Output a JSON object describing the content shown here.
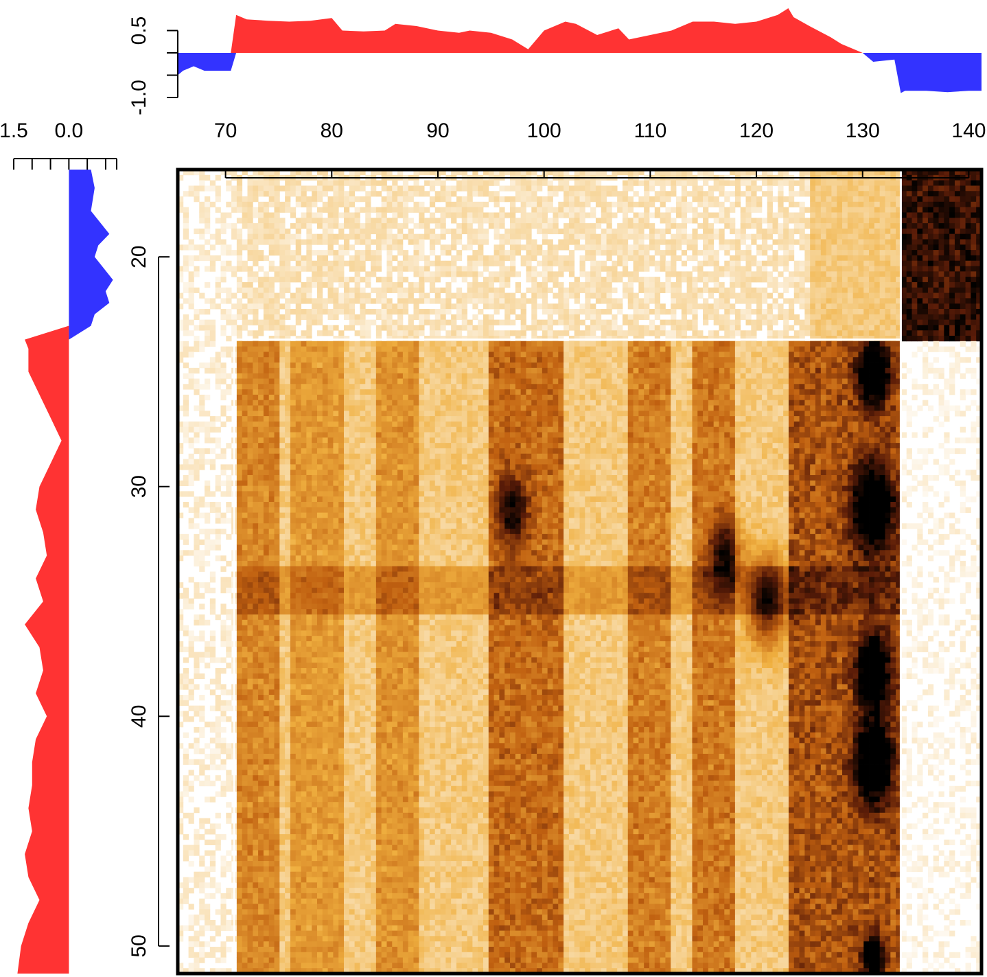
{
  "chart_data": {
    "type": "heatmap",
    "title": "",
    "xlabel": "",
    "ylabel": "",
    "heatmap": {
      "xlim": [
        65.5,
        141.2
      ],
      "ylim": [
        16.2,
        51.2
      ],
      "x_ticks": [
        70,
        80,
        90,
        100,
        110,
        120,
        130,
        140
      ],
      "y_ticks": [
        20,
        30,
        40,
        50
      ],
      "colormap": [
        "#ffffff",
        "#f0b040",
        "#c06010",
        "#5a1c08",
        "#000000"
      ],
      "x_boundaries": [
        70.8,
        133.6
      ],
      "y_boundary": 23.6,
      "vertical_bands": [
        {
          "x0": 71,
          "x1": 75,
          "level": 0.25
        },
        {
          "x0": 76,
          "x1": 81,
          "level": 0.18
        },
        {
          "x0": 84,
          "x1": 88,
          "level": 0.2
        },
        {
          "x0": 95,
          "x1": 102,
          "level": 0.35
        },
        {
          "x0": 108,
          "x1": 112,
          "level": 0.28
        },
        {
          "x0": 114,
          "x1": 118,
          "level": 0.3
        },
        {
          "x0": 123,
          "x1": 133.5,
          "level": 0.45
        }
      ],
      "hotspots": [
        {
          "x": 131,
          "y": 38,
          "r": 1.5,
          "level": 0.9
        },
        {
          "x": 131,
          "y": 42,
          "r": 1.8,
          "level": 0.85
        },
        {
          "x": 131,
          "y": 31,
          "r": 2.0,
          "level": 0.75
        },
        {
          "x": 131,
          "y": 25,
          "r": 1.5,
          "level": 0.8
        },
        {
          "x": 121,
          "y": 35,
          "r": 1.8,
          "level": 0.65
        },
        {
          "x": 131,
          "y": 50.5,
          "r": 1.0,
          "level": 0.8
        },
        {
          "x": 117,
          "y": 33,
          "r": 1.5,
          "level": 0.55
        },
        {
          "x": 97,
          "y": 31,
          "r": 1.5,
          "level": 0.5
        }
      ],
      "dark_block": {
        "x0": 133.6,
        "x1": 141.2,
        "y0": 16.2,
        "y1": 23.6,
        "level": 0.85
      }
    },
    "top_track": {
      "type": "area",
      "ylim": [
        -1.0,
        0.8
      ],
      "y_ticks": [
        0.5,
        -1.0
      ],
      "y_tick_labels": [
        "0.5",
        "-1.0"
      ],
      "positive_color": "#ff3333",
      "negative_color": "#3333ff",
      "x": [
        65.5,
        66,
        67,
        68,
        69,
        70,
        70.5,
        71,
        72,
        74,
        76,
        78,
        80,
        81,
        83,
        85,
        86,
        88,
        90,
        92,
        93,
        95,
        97,
        98.5,
        100,
        102,
        103,
        105,
        107,
        108,
        110,
        112,
        114,
        116,
        118,
        120,
        122,
        123,
        123.5,
        125,
        127,
        128,
        129,
        130,
        131,
        133,
        133.6,
        134,
        136,
        138,
        140,
        141.2
      ],
      "y": [
        -0.5,
        -0.4,
        -0.3,
        -0.4,
        -0.4,
        -0.4,
        -0.4,
        0.85,
        0.75,
        0.72,
        0.7,
        0.72,
        0.78,
        0.5,
        0.48,
        0.5,
        0.65,
        0.6,
        0.5,
        0.45,
        0.5,
        0.45,
        0.3,
        0.08,
        0.5,
        0.7,
        0.65,
        0.4,
        0.55,
        0.3,
        0.4,
        0.5,
        0.7,
        0.7,
        0.65,
        0.7,
        0.85,
        1.0,
        0.8,
        0.6,
        0.35,
        0.2,
        0.1,
        0.0,
        -0.2,
        -0.15,
        -0.9,
        -0.85,
        -0.85,
        -0.88,
        -0.85,
        -0.85
      ]
    },
    "left_track": {
      "type": "area",
      "xlim": [
        1.5,
        -1.3
      ],
      "x_ticks": [
        1.5,
        0.0
      ],
      "x_tick_labels": [
        "1.5",
        "0.0"
      ],
      "positive_color": "#ff3333",
      "negative_color": "#3333ff",
      "y": [
        16.2,
        17,
        18,
        19,
        19.5,
        20,
        21,
        21.5,
        22,
        22.5,
        23,
        23.6,
        24,
        25,
        26,
        27,
        28,
        29,
        30,
        31,
        32,
        33,
        34,
        35,
        36,
        37,
        38,
        39,
        40,
        41,
        42,
        43,
        44,
        45,
        46,
        47,
        48,
        49,
        50,
        51.2
      ],
      "v": [
        -0.6,
        -0.7,
        -0.6,
        -1.1,
        -0.8,
        -0.7,
        -1.2,
        -1.0,
        -1.1,
        -0.7,
        -0.6,
        1.2,
        1.1,
        1.1,
        0.8,
        0.5,
        0.2,
        0.5,
        0.8,
        0.9,
        0.7,
        0.6,
        0.9,
        0.7,
        1.2,
        0.8,
        0.7,
        0.9,
        0.6,
        0.9,
        1.0,
        1.0,
        1.1,
        1.0,
        1.2,
        1.1,
        0.8,
        1.1,
        1.3,
        1.4
      ]
    }
  }
}
